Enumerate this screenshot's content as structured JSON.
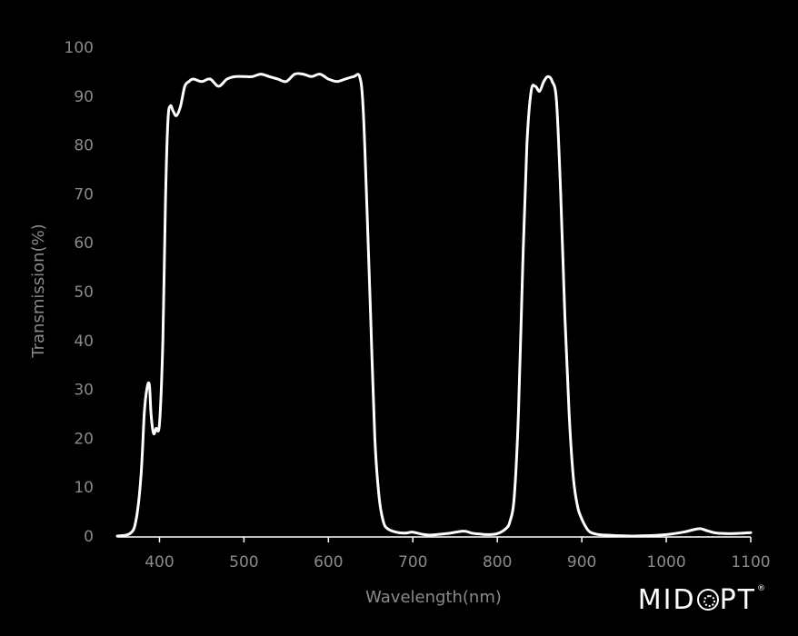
{
  "chart_data": {
    "type": "line",
    "xlabel": "Wavelength(nm)",
    "ylabel": "Transmission(%)",
    "xlim": [
      350,
      1100
    ],
    "ylim": [
      0,
      100
    ],
    "xticks": [
      400,
      500,
      600,
      700,
      800,
      900,
      1000,
      1100
    ],
    "yticks": [
      0,
      10,
      20,
      30,
      40,
      50,
      60,
      70,
      80,
      90,
      100
    ],
    "grid": false,
    "line_color": "#ffffff",
    "background": "#000000",
    "series": [
      {
        "x": [
          350,
          365,
          372,
          378,
          382,
          385,
          388,
          390,
          393,
          396,
          400,
          404,
          407,
          410,
          413,
          416,
          420,
          425,
          430,
          435,
          440,
          450,
          460,
          470,
          480,
          490,
          500,
          510,
          520,
          530,
          540,
          550,
          560,
          570,
          580,
          590,
          600,
          610,
          620,
          630,
          637,
          641,
          645,
          650,
          655,
          660,
          665,
          670,
          680,
          690,
          700,
          710,
          720,
          740,
          760,
          770,
          780,
          790,
          800,
          810,
          815,
          820,
          825,
          830,
          835,
          840,
          845,
          850,
          855,
          860,
          865,
          870,
          875,
          880,
          885,
          890,
          895,
          900,
          905,
          910,
          920,
          940,
          960,
          980,
          1000,
          1020,
          1030,
          1040,
          1050,
          1060,
          1080,
          1100
        ],
        "y": [
          0,
          0.5,
          3,
          12,
          25,
          30,
          31,
          25,
          21,
          22,
          23,
          40,
          68,
          85,
          88,
          87,
          86,
          88,
          92,
          93,
          93.5,
          93,
          93.5,
          92,
          93.5,
          94,
          94,
          94,
          94.5,
          94,
          93.5,
          93,
          94.5,
          94.5,
          94,
          94.5,
          93.5,
          93,
          93.5,
          94,
          94,
          88,
          70,
          45,
          20,
          8,
          3,
          1.5,
          0.8,
          0.6,
          0.8,
          0.4,
          0.2,
          0.5,
          1,
          0.6,
          0.4,
          0.3,
          0.5,
          1.5,
          3,
          8,
          25,
          55,
          80,
          91,
          92,
          91,
          93,
          94,
          93,
          89,
          70,
          45,
          25,
          12,
          6,
          3.5,
          1.8,
          0.8,
          0.3,
          0.1,
          0,
          0.1,
          0.3,
          0.8,
          1.2,
          1.5,
          1.0,
          0.6,
          0.5,
          0.7
        ]
      }
    ]
  },
  "logo": {
    "text_left": "MID",
    "text_right": "PT",
    "mark": "®"
  }
}
